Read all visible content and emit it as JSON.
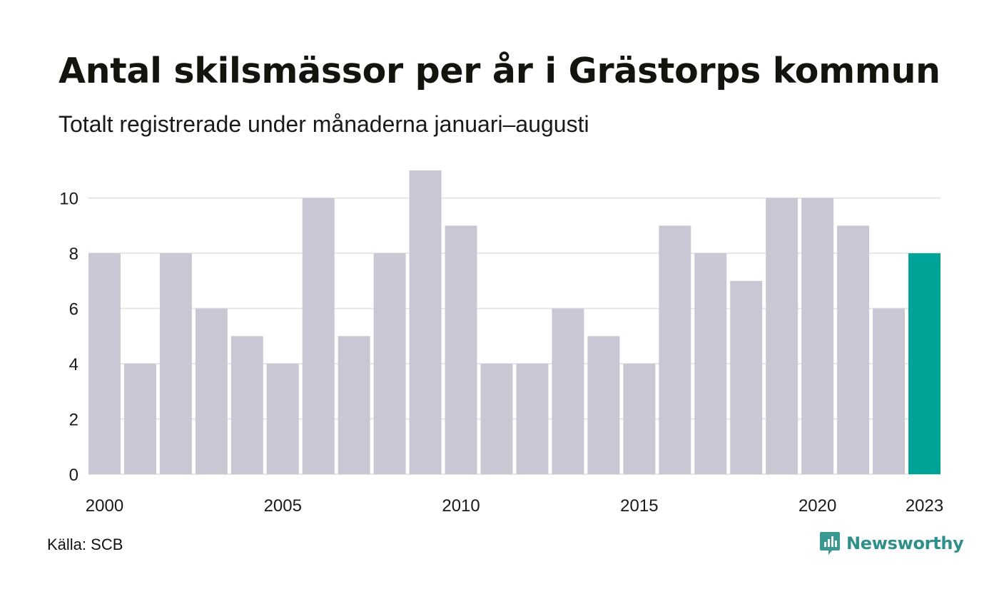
{
  "header": {
    "title": "Antal skilsmässor per år i Grästorps kommun",
    "subtitle": "Totalt registrerade under månaderna januari–augusti"
  },
  "footer": {
    "source": "Källa: SCB",
    "brand": "Newsworthy",
    "brand_icon": "newsworthy-logo-icon"
  },
  "colors": {
    "bar": "#c8c7d3",
    "highlight": "#00a398",
    "grid": "#e6e6e6",
    "brand": "#2f8f8a"
  },
  "chart_data": {
    "type": "bar",
    "title": "Antal skilsmässor per år i Grästorps kommun",
    "subtitle": "Totalt registrerade under månaderna januari–augusti",
    "categories": [
      "2000",
      "2001",
      "2002",
      "2003",
      "2004",
      "2005",
      "2006",
      "2007",
      "2008",
      "2009",
      "2010",
      "2011",
      "2012",
      "2013",
      "2014",
      "2015",
      "2016",
      "2017",
      "2018",
      "2019",
      "2020",
      "2021",
      "2022",
      "2023"
    ],
    "values": [
      8,
      4,
      8,
      6,
      5,
      4,
      10,
      5,
      8,
      11,
      9,
      4,
      4,
      6,
      5,
      4,
      9,
      8,
      7,
      10,
      10,
      9,
      6,
      8
    ],
    "x_tick_labels": [
      "2000",
      "2005",
      "2010",
      "2015",
      "2020",
      "2023"
    ],
    "y_ticks": [
      0,
      2,
      4,
      6,
      8,
      10
    ],
    "ylim": [
      0,
      11
    ],
    "highlight_category": "2023",
    "grid": true,
    "legend": "none",
    "xlabel": "",
    "ylabel": ""
  }
}
